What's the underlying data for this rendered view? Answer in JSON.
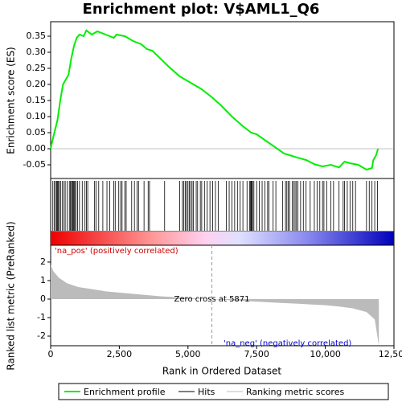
{
  "chart_data": {
    "type": "line",
    "title": "Enrichment plot: V$AML1_Q6",
    "ylabel": "Enrichment score (ES)",
    "xlabel": "Rank in Ordered Dataset",
    "xlim": [
      0,
      12500
    ],
    "xticks": [
      0,
      {
        "value": 2500,
        "label": "2,500"
      },
      {
        "value": 5000,
        "label": "5,000"
      },
      {
        "value": 7500,
        "label": "7,500"
      },
      {
        "value": 10000,
        "label": "10,000"
      },
      {
        "value": 12500,
        "label": "12,500"
      }
    ],
    "ylim": [
      -0.0925,
      0.395
    ],
    "yticks": [
      -0.05,
      {
        "value": 0,
        "label": "0.00"
      },
      0.05,
      {
        "value": 0.1,
        "label": "0.10"
      },
      0.15,
      {
        "value": 0.2,
        "label": "0.20"
      },
      0.25,
      {
        "value": 0.3,
        "label": "0.30"
      },
      0.35
    ],
    "x": [
      0,
      50,
      150,
      250,
      350,
      450,
      550,
      650,
      750,
      850,
      950,
      1050,
      1200,
      1300,
      1500,
      1700,
      2000,
      2300,
      2400,
      2700,
      3000,
      3300,
      3500,
      3700,
      4000,
      4300,
      4700,
      5000,
      5500,
      5871,
      6200,
      6600,
      7000,
      7300,
      7500,
      8000,
      8500,
      8700,
      9000,
      9300,
      9600,
      9900,
      10200,
      10500,
      10700,
      10900,
      11200,
      11500,
      11700,
      11750,
      11850,
      11920
    ],
    "series": [
      {
        "name": "Enrichment profile",
        "color": "#00ee00",
        "values": [
          0,
          0.02,
          0.055,
          0.09,
          0.15,
          0.2,
          0.215,
          0.23,
          0.28,
          0.32,
          0.345,
          0.355,
          0.35,
          0.368,
          0.355,
          0.365,
          0.355,
          0.345,
          0.355,
          0.35,
          0.335,
          0.325,
          0.31,
          0.305,
          0.28,
          0.255,
          0.225,
          0.21,
          0.185,
          0.16,
          0.135,
          0.1,
          0.07,
          0.05,
          0.045,
          0.015,
          -0.015,
          -0.02,
          -0.028,
          -0.035,
          -0.048,
          -0.055,
          -0.05,
          -0.058,
          -0.04,
          -0.045,
          -0.05,
          -0.065,
          -0.06,
          -0.035,
          -0.02,
          0
        ]
      }
    ],
    "hits": {
      "name": "Hits",
      "color": "#000000",
      "x": [
        80,
        130,
        180,
        220,
        250,
        280,
        320,
        360,
        420,
        480,
        530,
        600,
        680,
        720,
        760,
        790,
        820,
        850,
        880,
        920,
        980,
        1050,
        1150,
        1250,
        1300,
        1350,
        1600,
        1650,
        1750,
        1900,
        2050,
        2150,
        2300,
        2350,
        2480,
        2550,
        2600,
        2700,
        2750,
        2950,
        3050,
        3150,
        3200,
        3400,
        3550,
        3600,
        4150,
        4700,
        4800,
        4850,
        4900,
        4950,
        5000,
        5050,
        5100,
        5150,
        5200,
        5300,
        5350,
        5450,
        5500,
        5600,
        5700,
        5800,
        5900,
        6000,
        6100,
        6400,
        6500,
        6600,
        6700,
        6800,
        6900,
        7000,
        7150,
        7250,
        7280,
        7300,
        7320,
        7350,
        7400,
        7500,
        7600,
        7700,
        7800,
        7900,
        7950,
        8100,
        8200,
        8450,
        8550,
        8600,
        8650,
        8700,
        8800,
        8850,
        8900,
        8950,
        9000,
        9100,
        9200,
        9300,
        9450,
        9600,
        9700,
        9800,
        9900,
        9950,
        10050,
        10200,
        10300,
        10500,
        10650,
        10700,
        10800,
        10900,
        11000,
        11100,
        11500,
        11600,
        11700,
        11800,
        11900
      ]
    },
    "metric": {
      "name": "Ranking metric scores",
      "color": "#bbbbbb",
      "ylabel": "Ranked list metric (PreRanked)",
      "ylim": [
        -2.52,
        2.91
      ],
      "yticks": [
        2,
        1,
        0,
        -1,
        -2
      ],
      "x": [
        0,
        100,
        300,
        600,
        1000,
        2000,
        3000,
        4000,
        5000,
        5871,
        7000,
        8000,
        9000,
        10000,
        10500,
        11000,
        11500,
        11800,
        11950
      ],
      "values": [
        1.85,
        1.5,
        1.15,
        0.85,
        0.65,
        0.42,
        0.28,
        0.15,
        0.06,
        0,
        -0.1,
        -0.18,
        -0.25,
        -0.33,
        -0.4,
        -0.5,
        -0.7,
        -1.1,
        -2.5
      ]
    },
    "zero_cross": 5871,
    "zero_cross_label": "Zero cross at 5871",
    "pos_label": "'na_pos' (positively correlated)",
    "neg_label": "'na_neg' (negatively correlated)"
  }
}
